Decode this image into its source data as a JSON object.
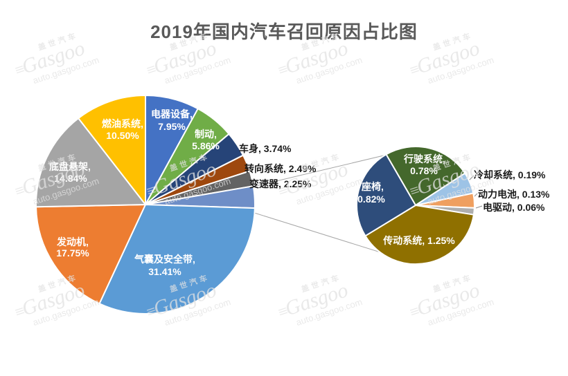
{
  "title": "2019年国内汽车召回原因占比图",
  "watermark": {
    "brand_cn": "盖世汽车",
    "brand_en": "Gasgoo",
    "site": "auto.gasgoo.com"
  },
  "chart_data": {
    "type": "pie",
    "subtype": "pie-of-pie",
    "title": "2019年国内汽车召回原因占比图",
    "unit": "%",
    "legend": "none",
    "label_format": "name, value%",
    "main_series": [
      {
        "name": "电器设备",
        "value": 7.95,
        "color": "#4472C4",
        "label_visible": true
      },
      {
        "name": "制动",
        "value": 5.86,
        "color": "#70AD47",
        "label_visible": true
      },
      {
        "name": "车身",
        "value": 3.74,
        "color": "#264478",
        "label_visible": true
      },
      {
        "name": "转向系统",
        "value": 2.49,
        "color": "#9E480E",
        "label_visible": true
      },
      {
        "name": "变速器",
        "value": 2.25,
        "color": "#636363",
        "label_visible": true
      },
      {
        "name": "",
        "value": 3.23,
        "color": "#6E8EC7",
        "label_visible": false,
        "is_other_group": true
      },
      {
        "name": "气囊及安全带",
        "value": 31.41,
        "color": "#5B9BD5",
        "label_visible": true
      },
      {
        "name": "发动机",
        "value": 17.75,
        "color": "#ED7D31",
        "label_visible": true
      },
      {
        "name": "底盘悬架",
        "value": 14.84,
        "color": "#A5A5A5",
        "label_visible": true
      },
      {
        "name": "燃油系统",
        "value": 10.5,
        "color": "#FFC000",
        "label_visible": true
      }
    ],
    "secondary_series": [
      {
        "name": "行驶系统",
        "value": 0.78,
        "color": "#44682C",
        "label_visible": true
      },
      {
        "name": "冷却系统",
        "value": 0.19,
        "color": "#9DC3E6",
        "label_visible": true
      },
      {
        "name": "动力电池",
        "value": 0.13,
        "color": "#EF9F5F",
        "label_visible": true
      },
      {
        "name": "电驱动",
        "value": 0.06,
        "color": "#AEAEAE",
        "label_visible": true
      },
      {
        "name": "传动系统",
        "value": 1.25,
        "color": "#8F7000",
        "label_visible": true
      },
      {
        "name": "座椅",
        "value": 0.82,
        "color": "#2E4D7B",
        "label_visible": true
      }
    ]
  }
}
